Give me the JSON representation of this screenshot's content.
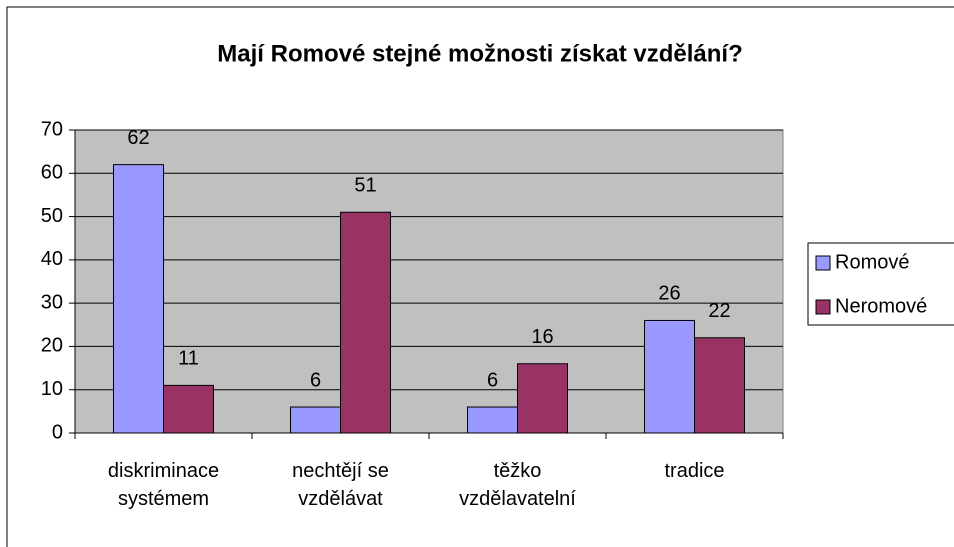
{
  "chart_data": {
    "type": "bar",
    "title": "Mají Romové stejné možnosti získat vzdělání?",
    "categories": [
      "diskriminace systémem",
      "nechtějí se vzdělávat",
      "těžko vzdělavatelní",
      "tradice"
    ],
    "series": [
      {
        "name": "Romové",
        "color": "#9999ff",
        "values": [
          62,
          6,
          6,
          26
        ]
      },
      {
        "name": "Neromové",
        "color": "#993366",
        "values": [
          11,
          51,
          16,
          22
        ]
      }
    ],
    "ylim": [
      0,
      70
    ],
    "yticks": [
      0,
      10,
      20,
      30,
      40,
      50,
      60,
      70
    ],
    "grid": true,
    "legend": "right"
  }
}
